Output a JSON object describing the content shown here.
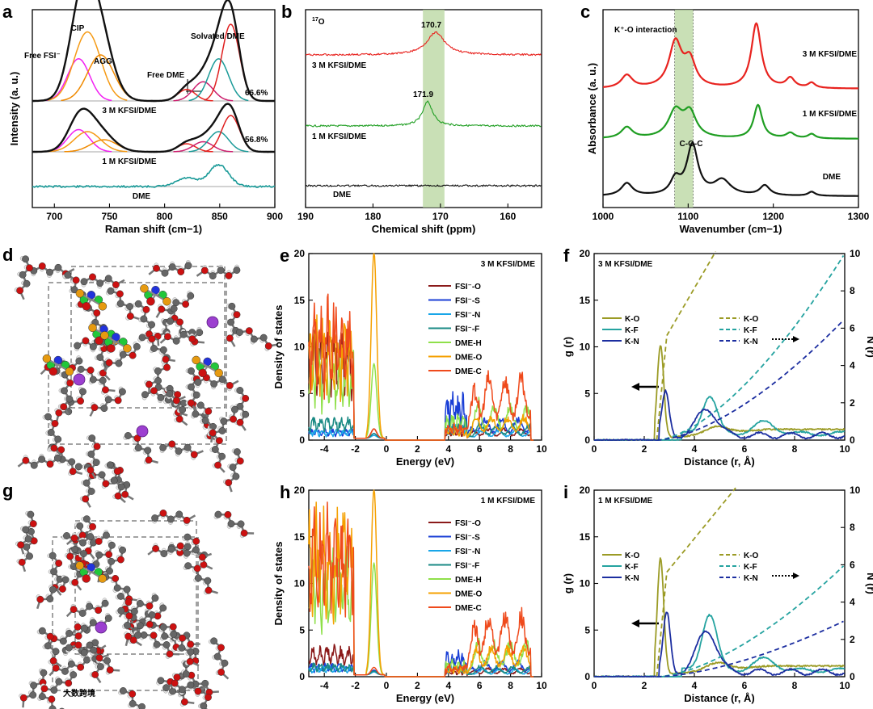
{
  "chart_data": [
    {
      "panel": "a",
      "type": "line",
      "xlabel": "Raman shift (cm−1)",
      "ylabel": "Intensity (a. u.)",
      "xlim": [
        680,
        900
      ],
      "xticks": [
        "700",
        "750",
        "800",
        "850",
        "900"
      ],
      "series_labels": [
        "3 M KFSI/DME",
        "1 M KFSI/DME",
        "DME"
      ],
      "annotations": [
        "CIP",
        "Free FSI⁻",
        "AGG",
        "Solvated DME",
        "Free DME",
        "66.6%",
        "56.8%"
      ],
      "series": [
        {
          "name": "3 M KFSI/DME",
          "peaks": [
            [
              722,
              0.55,
              10
            ],
            [
              730,
              0.9,
              12
            ],
            [
              742,
              0.6,
              12
            ],
            [
              820,
              0.15,
              8
            ],
            [
              835,
              0.25,
              9
            ],
            [
              849,
              0.55,
              9
            ],
            [
              860,
              1.0,
              8
            ]
          ]
        },
        {
          "name": "1 M KFSI/DME",
          "peaks": [
            [
              722,
              0.55,
              10
            ],
            [
              730,
              0.5,
              12
            ],
            [
              745,
              0.3,
              12
            ],
            [
              820,
              0.2,
              8
            ],
            [
              835,
              0.25,
              9
            ],
            [
              849,
              0.5,
              9
            ],
            [
              860,
              0.9,
              8
            ]
          ]
        },
        {
          "name": "DME",
          "peaks": [
            [
              820,
              0.35,
              9
            ],
            [
              849,
              0.9,
              9
            ]
          ]
        }
      ]
    },
    {
      "panel": "b",
      "type": "line",
      "xlabel": "Chemical shift (ppm)",
      "xlim": [
        190,
        155
      ],
      "xticks": [
        "190",
        "180",
        "170",
        "160"
      ],
      "nucleus_label": "17O",
      "series": [
        {
          "name": "3 M KFSI/DME",
          "peak_ppm": 170.7,
          "peak_label": "170.7"
        },
        {
          "name": "1 M KFSI/DME",
          "peak_ppm": 171.9,
          "peak_label": "171.9"
        },
        {
          "name": "DME",
          "peak_ppm": null
        }
      ]
    },
    {
      "panel": "c",
      "type": "line",
      "xlabel": "Wavenumber (cm−1)",
      "ylabel": "Absorbance (a. u.)",
      "xlim": [
        1000,
        1300
      ],
      "xticks": [
        "1000",
        "1100",
        "1200",
        "1300"
      ],
      "annotations": [
        "K⁺-O interaction",
        "C-O-C"
      ],
      "series": [
        {
          "name": "3 M KFSI/DME",
          "peaks": [
            [
              1028,
              0.2,
              8
            ],
            [
              1085,
              0.7,
              9
            ],
            [
              1102,
              0.4,
              8
            ],
            [
              1180,
              1.0,
              7
            ],
            [
              1220,
              0.15,
              6
            ],
            [
              1245,
              0.08,
              5
            ]
          ]
        },
        {
          "name": "1 M KFSI/DME",
          "peaks": [
            [
              1028,
              0.25,
              8
            ],
            [
              1085,
              0.6,
              10
            ],
            [
              1102,
              0.55,
              9
            ],
            [
              1182,
              0.75,
              6
            ],
            [
              1220,
              0.12,
              6
            ],
            [
              1245,
              0.1,
              5
            ]
          ]
        },
        {
          "name": "DME",
          "peaks": [
            [
              1028,
              0.25,
              8
            ],
            [
              1085,
              0.3,
              7
            ],
            [
              1105,
              1.0,
              8
            ],
            [
              1140,
              0.3,
              12
            ],
            [
              1190,
              0.2,
              7
            ],
            [
              1245,
              0.08,
              5
            ]
          ]
        }
      ]
    },
    {
      "panel": "d",
      "type": "other",
      "description": "3 M KFSI/DME solvation box"
    },
    {
      "panel": "e",
      "type": "line",
      "title": "3 M KFSI/DME",
      "xlabel": "Energy (eV)",
      "ylabel": "Density of states",
      "xlim": [
        -5,
        10
      ],
      "ylim": [
        0,
        20
      ],
      "xticks": [
        "-4",
        "-2",
        "0",
        "2",
        "4",
        "6",
        "8",
        "10"
      ],
      "yticks": [
        "0",
        "5",
        "10",
        "15",
        "20"
      ],
      "legend": [
        "FSI⁻-O",
        "FSI⁻-S",
        "FSI⁻-N",
        "FSI⁻-F",
        "DME-H",
        "DME-O",
        "DME-C"
      ]
    },
    {
      "panel": "f",
      "type": "line",
      "title": "3 M KFSI/DME",
      "xlabel": "Distance (r, Å)",
      "ylabel_left": "g (r)",
      "ylabel_right": "N (r)",
      "xlim": [
        0,
        10
      ],
      "ylim_left": [
        0,
        20
      ],
      "ylim_right": [
        0,
        10
      ],
      "xticks": [
        "0",
        "2",
        "4",
        "6",
        "8",
        "10"
      ],
      "yticks_left": [
        "0",
        "5",
        "10",
        "15",
        "20"
      ],
      "yticks_right": [
        "0",
        "2",
        "4",
        "6",
        "8",
        "10"
      ],
      "legend_g": [
        "K-O",
        "K-F",
        "K-N"
      ],
      "legend_n": [
        "K-O",
        "K-F",
        "K-N"
      ],
      "gr_peaks": {
        "K-O": [
          2.65,
          10.2
        ],
        "K-F": [
          4.6,
          4.0
        ],
        "K-N": [
          2.85,
          4.5
        ]
      }
    },
    {
      "panel": "g",
      "type": "other",
      "description": "1 M KFSI/DME solvation box"
    },
    {
      "panel": "h",
      "type": "line",
      "title": "1 M KFSI/DME",
      "xlabel": "Energy (eV)",
      "ylabel": "Density of states",
      "xlim": [
        -5,
        10
      ],
      "ylim": [
        0,
        20
      ],
      "xticks": [
        "-4",
        "-2",
        "0",
        "2",
        "4",
        "6",
        "8",
        "10"
      ],
      "yticks": [
        "0",
        "5",
        "10",
        "15",
        "20"
      ],
      "legend": [
        "FSI⁻-O",
        "FSI⁻-S",
        "FSI⁻-N",
        "FSI⁻-F",
        "DME-H",
        "DME-O",
        "DME-C"
      ]
    },
    {
      "panel": "i",
      "type": "line",
      "title": "1 M KFSI/DME",
      "xlabel": "Distance (r, Å)",
      "ylabel_left": "g (r)",
      "ylabel_right": "N (r)",
      "xlim": [
        0,
        10
      ],
      "ylim_left": [
        0,
        20
      ],
      "ylim_right": [
        0,
        10
      ],
      "xticks": [
        "0",
        "2",
        "4",
        "6",
        "8",
        "10"
      ],
      "yticks_left": [
        "0",
        "5",
        "10",
        "15",
        "20"
      ],
      "yticks_right": [
        "0",
        "2",
        "4",
        "6",
        "8",
        "10"
      ],
      "legend_g": [
        "K-O",
        "K-F",
        "K-N"
      ],
      "legend_n": [
        "K-O",
        "K-F",
        "K-N"
      ],
      "gr_peaks": {
        "K-O": [
          2.65,
          12.7
        ],
        "K-F": [
          4.6,
          6.0
        ],
        "K-N": [
          2.9,
          6.2
        ]
      }
    }
  ],
  "panel_letters": [
    "a",
    "b",
    "c",
    "d",
    "e",
    "f",
    "g",
    "h",
    "i"
  ],
  "watermark": "大数跨境",
  "colors": {
    "fsi_o": "#8b1a1a",
    "fsi_s": "#1a3fd6",
    "fsi_n": "#19a6e8",
    "fsi_f": "#1a8a84",
    "dme_h": "#8fe04a",
    "dme_o": "#f5a000",
    "dme_c": "#ef4a1c",
    "red": "#e8231f",
    "green": "#1f9e22",
    "black": "#111111",
    "ko": "#9b9b25",
    "kf": "#25a3a0",
    "kn": "#1c2ea0",
    "band": "#bcd8a4"
  }
}
